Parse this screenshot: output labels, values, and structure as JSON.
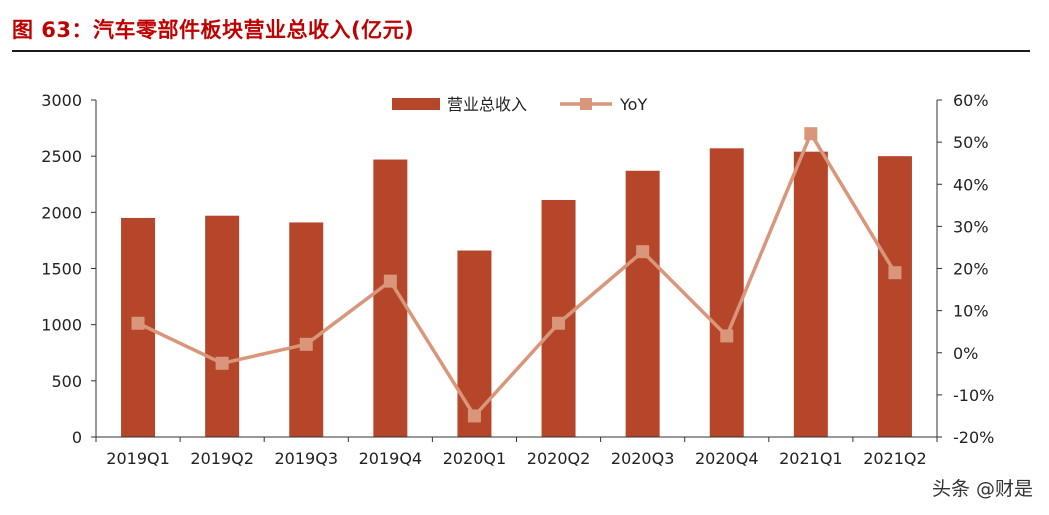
{
  "figure": {
    "title": "图 63：汽车零部件板块营业总收入(亿元)"
  },
  "watermark": "头条 @财是",
  "colors": {
    "bar": "#b5462a",
    "line": "#d9967a",
    "title": "#c00000",
    "axis": "#333333"
  },
  "chart_data": {
    "type": "bar",
    "title": "",
    "categories": [
      "2019Q1",
      "2019Q2",
      "2019Q3",
      "2019Q4",
      "2020Q1",
      "2020Q2",
      "2020Q3",
      "2020Q4",
      "2021Q1",
      "2021Q2"
    ],
    "series": [
      {
        "name": "营业总收入",
        "type": "bar",
        "axis": "left",
        "values": [
          1950,
          1970,
          1910,
          2470,
          1660,
          2110,
          2370,
          2570,
          2540,
          2500
        ]
      },
      {
        "name": "YoY",
        "type": "line",
        "axis": "right",
        "marker": "square",
        "values": [
          7,
          -2.5,
          2,
          17,
          -15,
          7,
          24,
          4,
          52,
          19
        ]
      }
    ],
    "left_axis": {
      "min": 0,
      "max": 3000,
      "ticks": [
        0,
        500,
        1000,
        1500,
        2000,
        2500,
        3000
      ],
      "tick_labels": [
        "0",
        "500",
        "1000",
        "1500",
        "2000",
        "2500",
        "3000"
      ]
    },
    "right_axis": {
      "min": -20,
      "max": 60,
      "ticks": [
        -20,
        -10,
        0,
        10,
        20,
        30,
        40,
        50,
        60
      ],
      "tick_labels": [
        "-20%",
        "-10%",
        "0%",
        "10%",
        "20%",
        "30%",
        "40%",
        "50%",
        "60%"
      ]
    },
    "legend": {
      "placement": "top-center",
      "entries": [
        "营业总收入",
        "YoY"
      ]
    },
    "grid": false
  }
}
